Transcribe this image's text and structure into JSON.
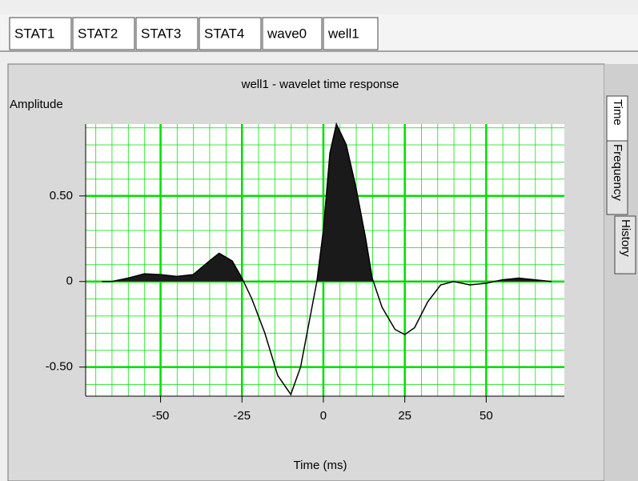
{
  "tabs": [
    {
      "label": "STAT1",
      "color": "#000000"
    },
    {
      "label": "STAT2",
      "color": "#000000"
    },
    {
      "label": "STAT3",
      "color": "#000000"
    },
    {
      "label": "STAT4",
      "color": "#000000"
    },
    {
      "label": "wave0",
      "color": "#000000"
    },
    {
      "label": "well1",
      "color": "#e00000"
    }
  ],
  "side_tabs": [
    "Time",
    "Frequency",
    "History"
  ],
  "chart_data": {
    "type": "line",
    "title": "well1 - wavelet time response",
    "y_label": "Amplitude",
    "x_label": "Time (ms)",
    "x": [
      -68,
      -65,
      -60,
      -55,
      -50,
      -45,
      -40,
      -35,
      -32,
      -28,
      -25,
      -22,
      -18,
      -14,
      -10,
      -7,
      -4,
      -2,
      0,
      2,
      4,
      7,
      10,
      13,
      15,
      18,
      22,
      25,
      28,
      32,
      36,
      40,
      45,
      50,
      55,
      60,
      65,
      70
    ],
    "series": [
      {
        "color": "#000000",
        "fill": "#1a1a1a",
        "values": [
          0,
          0,
          0.02,
          0.045,
          0.04,
          0.03,
          0.04,
          0.12,
          0.165,
          0.12,
          0.02,
          -0.1,
          -0.3,
          -0.55,
          -0.66,
          -0.5,
          -0.2,
          0,
          0.3,
          0.75,
          0.92,
          0.8,
          0.55,
          0.25,
          0.02,
          -0.15,
          -0.28,
          -0.31,
          -0.27,
          -0.12,
          -0.02,
          0,
          -0.02,
          -0.01,
          0.01,
          0.02,
          0.01,
          0
        ]
      }
    ],
    "xlim": [
      -73,
      74
    ],
    "ylim": [
      -0.67,
      0.92
    ],
    "xticks": [
      -50,
      -25,
      0,
      25,
      50
    ],
    "yticks": [
      {
        "value": -0.5,
        "label": "-0.50"
      },
      0,
      {
        "value": 0.5,
        "label": "0.50"
      }
    ],
    "grid": true,
    "grid_color": "#00dd00"
  }
}
